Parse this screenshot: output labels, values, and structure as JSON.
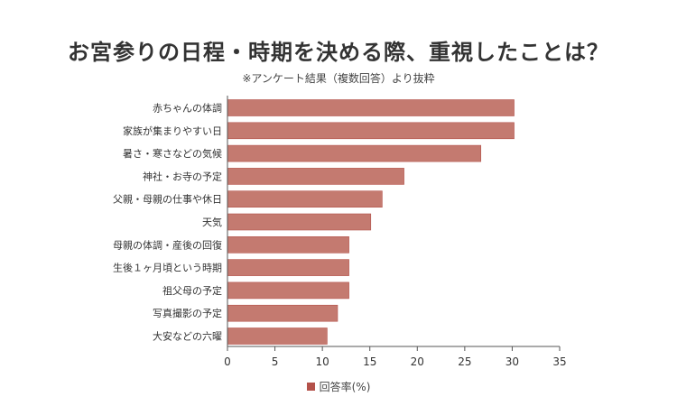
{
  "header": {
    "title": "お宮参りの日程・時期を決める際、重視したことは？",
    "subtitle": "※アンケート結果（複数回答）より抜粋"
  },
  "colors": {
    "bar": "#c47a70",
    "bar_stroke": "#b4524a",
    "legend": "#b4524a"
  },
  "chart_data": {
    "type": "bar",
    "orientation": "horizontal",
    "title": "お宮参りの日程・時期を決める際、重視したことは？",
    "subtitle": "※アンケート結果（複数回答）より抜粋",
    "categories": [
      "赤ちゃんの体調",
      "家族が集まりやすい日",
      "暑さ・寒さなどの気候",
      "神社・お寺の予定",
      "父親・母親の仕事や休日",
      "天気",
      "母親の体調・産後の回復",
      "生後１ヶ月頃という時期",
      "祖父母の予定",
      "写真撮影の予定",
      "大安などの六曜"
    ],
    "series": [
      {
        "name": "回答率(%)",
        "values": [
          30.2,
          30.2,
          26.7,
          18.6,
          16.3,
          15.1,
          12.8,
          12.8,
          12.8,
          11.6,
          10.5
        ]
      }
    ],
    "xlim": [
      0,
      35
    ],
    "xticks": [
      0,
      5,
      10,
      15,
      20,
      25,
      30,
      35
    ],
    "xlabel": "",
    "ylabel": "",
    "grid": false,
    "legend_position": "bottom"
  }
}
